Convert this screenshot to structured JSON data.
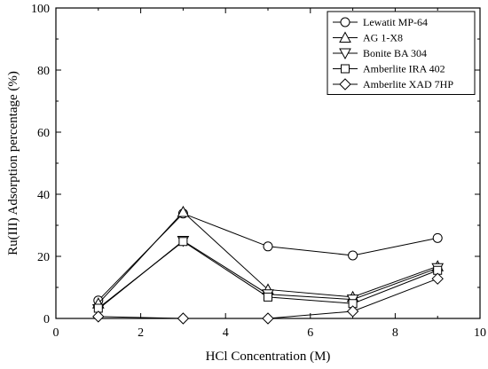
{
  "chart_data": {
    "type": "line",
    "title": "",
    "xlabel": "HCl Concentration (M)",
    "ylabel": "Ru(III) Adsorption percentage (%)",
    "xlim": [
      0,
      10
    ],
    "ylim": [
      0,
      100
    ],
    "xticks": [
      "0",
      "2",
      "4",
      "6",
      "8",
      "10"
    ],
    "yticks": [
      "0",
      "20",
      "40",
      "60",
      "80",
      "100"
    ],
    "grid": false,
    "legend_position": "top-right",
    "x": [
      1,
      3,
      5,
      7,
      9
    ],
    "series": [
      {
        "name": "Lewatit MP-64",
        "marker": "circle",
        "values": [
          5.8,
          33.8,
          23.2,
          20.3,
          25.9
        ]
      },
      {
        "name": "AG 1-X8",
        "marker": "triangle-up",
        "values": [
          4.8,
          34.3,
          9.3,
          6.9,
          16.8
        ]
      },
      {
        "name": "Bonite BA 304",
        "marker": "triangle-down",
        "values": [
          3.0,
          25.0,
          7.8,
          6.1,
          16.2
        ]
      },
      {
        "name": "Amberlite IRA 402",
        "marker": "square",
        "values": [
          3.3,
          24.8,
          6.9,
          4.8,
          15.5
        ]
      },
      {
        "name": "Amberlite XAD 7HP",
        "marker": "diamond",
        "values": [
          0.6,
          0.0,
          0.0,
          2.3,
          12.8
        ]
      }
    ]
  }
}
